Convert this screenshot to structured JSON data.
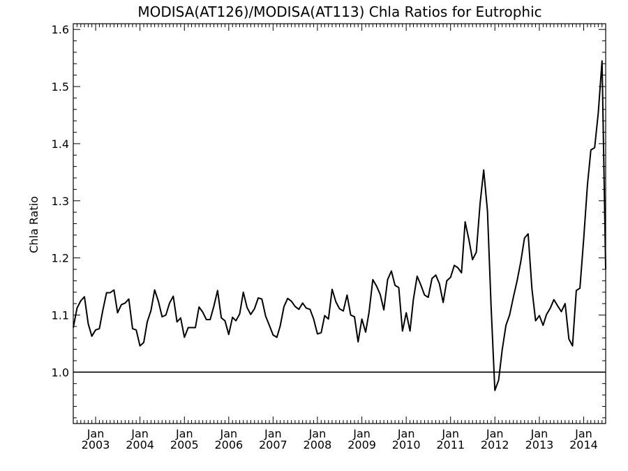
{
  "chart_data": {
    "type": "line",
    "title": "MODISA(AT126)/MODISA(AT113)  Chla Ratios for Eutrophic",
    "xlabel": "",
    "ylabel": "Chla Ratio",
    "xlim": [
      "2002-07-01",
      "2014-07-01"
    ],
    "ylim": [
      0.91,
      1.61
    ],
    "yticks": [
      "1.0",
      "1.1",
      "1.2",
      "1.3",
      "1.4",
      "1.5",
      "1.6"
    ],
    "xtick_month": "Jan",
    "xticks": [
      {
        "month": "Jan",
        "year": "2003",
        "date": "2003-01-01"
      },
      {
        "month": "Jan",
        "year": "2004",
        "date": "2004-01-01"
      },
      {
        "month": "Jan",
        "year": "2005",
        "date": "2005-01-01"
      },
      {
        "month": "Jan",
        "year": "2006",
        "date": "2006-01-01"
      },
      {
        "month": "Jan",
        "year": "2007",
        "date": "2007-01-01"
      },
      {
        "month": "Jan",
        "year": "2008",
        "date": "2008-01-01"
      },
      {
        "month": "Jan",
        "year": "2009",
        "date": "2009-01-01"
      },
      {
        "month": "Jan",
        "year": "2010",
        "date": "2010-01-01"
      },
      {
        "month": "Jan",
        "year": "2011",
        "date": "2011-01-01"
      },
      {
        "month": "Jan",
        "year": "2012",
        "date": "2012-01-01"
      },
      {
        "month": "Jan",
        "year": "2013",
        "date": "2013-01-01"
      },
      {
        "month": "Jan",
        "year": "2014",
        "date": "2014-01-01"
      }
    ],
    "reference_line": 1.0,
    "grid": false,
    "series": [
      {
        "values": [
          [
            "2002-07-01",
            1.078
          ],
          [
            "2002-08-01",
            1.112
          ],
          [
            "2002-09-01",
            1.125
          ],
          [
            "2002-10-01",
            1.132
          ],
          [
            "2002-11-01",
            1.085
          ],
          [
            "2002-12-01",
            1.063
          ],
          [
            "2003-01-01",
            1.074
          ],
          [
            "2003-02-01",
            1.076
          ],
          [
            "2003-03-01",
            1.108
          ],
          [
            "2003-04-01",
            1.139
          ],
          [
            "2003-05-01",
            1.139
          ],
          [
            "2003-06-01",
            1.144
          ],
          [
            "2003-07-01",
            1.104
          ],
          [
            "2003-08-01",
            1.118
          ],
          [
            "2003-09-01",
            1.121
          ],
          [
            "2003-10-01",
            1.128
          ],
          [
            "2003-11-01",
            1.076
          ],
          [
            "2003-12-01",
            1.074
          ],
          [
            "2004-01-01",
            1.046
          ],
          [
            "2004-02-01",
            1.052
          ],
          [
            "2004-03-01",
            1.088
          ],
          [
            "2004-04-01",
            1.108
          ],
          [
            "2004-05-01",
            1.144
          ],
          [
            "2004-06-01",
            1.124
          ],
          [
            "2004-07-01",
            1.097
          ],
          [
            "2004-08-01",
            1.1
          ],
          [
            "2004-09-01",
            1.121
          ],
          [
            "2004-10-01",
            1.133
          ],
          [
            "2004-11-01",
            1.088
          ],
          [
            "2004-12-01",
            1.095
          ],
          [
            "2005-01-01",
            1.061
          ],
          [
            "2005-02-01",
            1.078
          ],
          [
            "2005-03-01",
            1.078
          ],
          [
            "2005-04-01",
            1.078
          ],
          [
            "2005-05-01",
            1.114
          ],
          [
            "2005-06-01",
            1.105
          ],
          [
            "2005-07-01",
            1.092
          ],
          [
            "2005-08-01",
            1.092
          ],
          [
            "2005-09-01",
            1.116
          ],
          [
            "2005-10-01",
            1.143
          ],
          [
            "2005-11-01",
            1.095
          ],
          [
            "2005-12-01",
            1.09
          ],
          [
            "2006-01-01",
            1.066
          ],
          [
            "2006-02-01",
            1.096
          ],
          [
            "2006-03-01",
            1.09
          ],
          [
            "2006-04-01",
            1.102
          ],
          [
            "2006-05-01",
            1.14
          ],
          [
            "2006-06-01",
            1.113
          ],
          [
            "2006-07-01",
            1.101
          ],
          [
            "2006-08-01",
            1.111
          ],
          [
            "2006-09-01",
            1.13
          ],
          [
            "2006-10-01",
            1.128
          ],
          [
            "2006-11-01",
            1.098
          ],
          [
            "2006-12-01",
            1.082
          ],
          [
            "2007-01-01",
            1.065
          ],
          [
            "2007-02-01",
            1.061
          ],
          [
            "2007-03-01",
            1.081
          ],
          [
            "2007-04-01",
            1.115
          ],
          [
            "2007-05-01",
            1.129
          ],
          [
            "2007-06-01",
            1.124
          ],
          [
            "2007-07-01",
            1.115
          ],
          [
            "2007-08-01",
            1.11
          ],
          [
            "2007-09-01",
            1.121
          ],
          [
            "2007-10-01",
            1.112
          ],
          [
            "2007-11-01",
            1.11
          ],
          [
            "2007-12-01",
            1.093
          ],
          [
            "2008-01-01",
            1.067
          ],
          [
            "2008-02-01",
            1.069
          ],
          [
            "2008-03-01",
            1.099
          ],
          [
            "2008-04-01",
            1.093
          ],
          [
            "2008-05-01",
            1.145
          ],
          [
            "2008-06-01",
            1.123
          ],
          [
            "2008-07-01",
            1.111
          ],
          [
            "2008-08-01",
            1.107
          ],
          [
            "2008-09-01",
            1.135
          ],
          [
            "2008-10-01",
            1.1
          ],
          [
            "2008-11-01",
            1.097
          ],
          [
            "2008-12-01",
            1.053
          ],
          [
            "2009-01-01",
            1.093
          ],
          [
            "2009-02-01",
            1.07
          ],
          [
            "2009-03-01",
            1.105
          ],
          [
            "2009-04-01",
            1.162
          ],
          [
            "2009-05-01",
            1.151
          ],
          [
            "2009-06-01",
            1.136
          ],
          [
            "2009-07-01",
            1.109
          ],
          [
            "2009-08-01",
            1.162
          ],
          [
            "2009-09-01",
            1.177
          ],
          [
            "2009-10-01",
            1.152
          ],
          [
            "2009-11-01",
            1.148
          ],
          [
            "2009-12-01",
            1.072
          ],
          [
            "2010-01-01",
            1.104
          ],
          [
            "2010-02-01",
            1.072
          ],
          [
            "2010-03-01",
            1.127
          ],
          [
            "2010-04-01",
            1.168
          ],
          [
            "2010-05-01",
            1.153
          ],
          [
            "2010-06-01",
            1.135
          ],
          [
            "2010-07-01",
            1.131
          ],
          [
            "2010-08-01",
            1.164
          ],
          [
            "2010-09-01",
            1.17
          ],
          [
            "2010-10-01",
            1.155
          ],
          [
            "2010-11-01",
            1.122
          ],
          [
            "2010-12-01",
            1.16
          ],
          [
            "2011-01-01",
            1.166
          ],
          [
            "2011-02-01",
            1.187
          ],
          [
            "2011-03-01",
            1.183
          ],
          [
            "2011-04-01",
            1.174
          ],
          [
            "2011-05-01",
            1.263
          ],
          [
            "2011-06-01",
            1.232
          ],
          [
            "2011-07-01",
            1.197
          ],
          [
            "2011-08-01",
            1.21
          ],
          [
            "2011-09-01",
            1.295
          ],
          [
            "2011-10-01",
            1.354
          ],
          [
            "2011-11-01",
            1.282
          ],
          [
            "2011-12-01",
            1.115
          ],
          [
            "2012-01-01",
            0.968
          ],
          [
            "2012-02-01",
            0.986
          ],
          [
            "2012-03-01",
            1.039
          ],
          [
            "2012-04-01",
            1.082
          ],
          [
            "2012-05-01",
            1.1
          ],
          [
            "2012-06-01",
            1.131
          ],
          [
            "2012-07-01",
            1.159
          ],
          [
            "2012-08-01",
            1.193
          ],
          [
            "2012-09-01",
            1.235
          ],
          [
            "2012-10-01",
            1.242
          ],
          [
            "2012-11-01",
            1.146
          ],
          [
            "2012-12-01",
            1.09
          ],
          [
            "2013-01-01",
            1.099
          ],
          [
            "2013-02-01",
            1.082
          ],
          [
            "2013-03-01",
            1.101
          ],
          [
            "2013-04-01",
            1.112
          ],
          [
            "2013-05-01",
            1.127
          ],
          [
            "2013-06-01",
            1.116
          ],
          [
            "2013-07-01",
            1.106
          ],
          [
            "2013-08-01",
            1.12
          ],
          [
            "2013-09-01",
            1.058
          ],
          [
            "2013-10-01",
            1.046
          ],
          [
            "2013-11-01",
            1.143
          ],
          [
            "2013-12-01",
            1.147
          ],
          [
            "2014-01-01",
            1.233
          ],
          [
            "2014-02-01",
            1.328
          ],
          [
            "2014-03-01",
            1.389
          ],
          [
            "2014-04-01",
            1.393
          ],
          [
            "2014-05-01",
            1.454
          ],
          [
            "2014-06-01",
            1.545
          ],
          [
            "2014-07-01",
            1.18
          ]
        ]
      }
    ]
  }
}
